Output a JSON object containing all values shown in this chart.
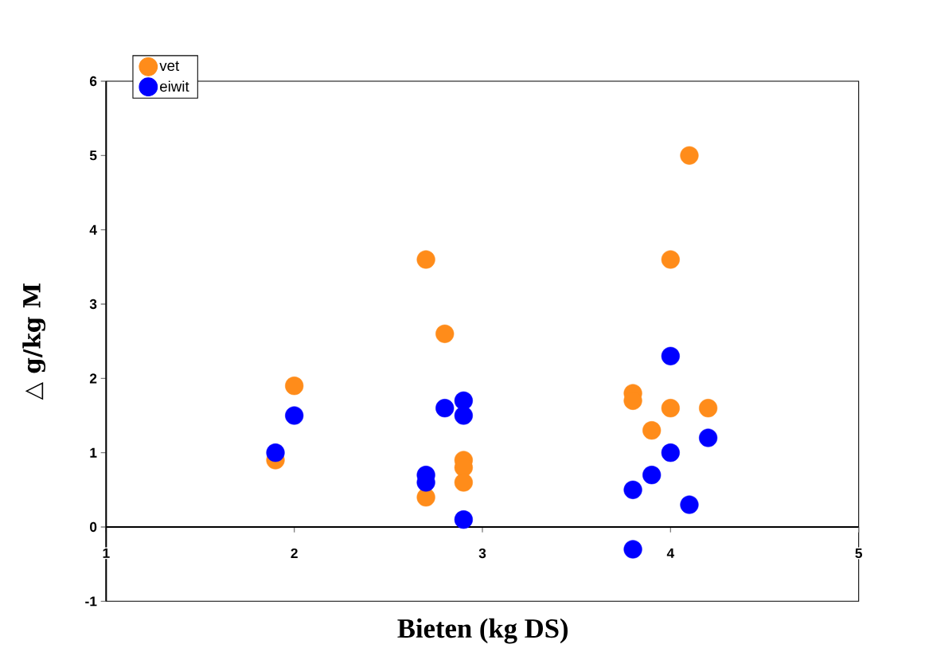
{
  "chart_data": {
    "type": "scatter",
    "xlabel": "Bieten (kg DS)",
    "ylabel": "△ g/kg M",
    "xlim": [
      1,
      5
    ],
    "xticks": [
      1,
      2,
      3,
      4,
      5
    ],
    "ylim": [
      -1,
      6
    ],
    "yticks": [
      -1,
      0,
      1,
      2,
      3,
      4,
      5,
      6
    ],
    "grid": false,
    "legend": "top left",
    "marker": "circle",
    "series": [
      {
        "name": "vet",
        "color": "#ff8c1a",
        "x": [
          1.9,
          2.0,
          2.7,
          2.7,
          2.8,
          2.9,
          2.9,
          2.9,
          3.8,
          3.8,
          3.9,
          4.0,
          4.0,
          4.1,
          4.2
        ],
        "values": [
          0.9,
          1.9,
          3.6,
          0.4,
          2.6,
          0.9,
          0.8,
          0.6,
          1.8,
          1.7,
          1.3,
          3.6,
          1.6,
          5.0,
          1.6
        ]
      },
      {
        "name": "eiwit",
        "color": "#0000ff",
        "x": [
          1.9,
          2.0,
          2.7,
          2.7,
          2.8,
          2.9,
          2.9,
          2.9,
          3.8,
          3.8,
          3.9,
          4.0,
          4.0,
          4.1,
          4.2
        ],
        "values": [
          1.0,
          1.5,
          0.7,
          0.6,
          1.6,
          1.7,
          1.5,
          0.1,
          -0.3,
          0.5,
          0.7,
          2.3,
          1.0,
          0.3,
          1.2
        ]
      }
    ]
  }
}
